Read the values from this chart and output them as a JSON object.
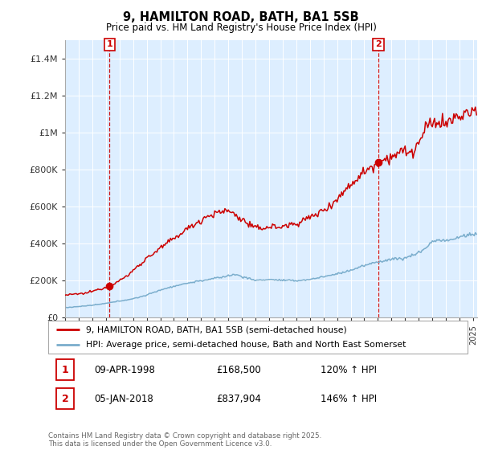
{
  "title": "9, HAMILTON ROAD, BATH, BA1 5SB",
  "subtitle": "Price paid vs. HM Land Registry's House Price Index (HPI)",
  "legend_line1": "9, HAMILTON ROAD, BATH, BA1 5SB (semi-detached house)",
  "legend_line2": "HPI: Average price, semi-detached house, Bath and North East Somerset",
  "annotation1_label": "1",
  "annotation1_date": "09-APR-1998",
  "annotation1_price": "£168,500",
  "annotation1_hpi": "120% ↑ HPI",
  "annotation2_label": "2",
  "annotation2_date": "05-JAN-2018",
  "annotation2_price": "£837,904",
  "annotation2_hpi": "146% ↑ HPI",
  "footer": "Contains HM Land Registry data © Crown copyright and database right 2025.\nThis data is licensed under the Open Government Licence v3.0.",
  "red_color": "#cc0000",
  "blue_color": "#7aadcc",
  "bg_color": "#ddeeff",
  "ylim_max": 1500000,
  "yticks": [
    0,
    200000,
    400000,
    600000,
    800000,
    1000000,
    1200000,
    1400000
  ],
  "ytick_labels": [
    "£0",
    "£200K",
    "£400K",
    "£600K",
    "£800K",
    "£1M",
    "£1.2M",
    "£1.4M"
  ],
  "sale1_x": 1998.27,
  "sale1_y": 168500,
  "sale2_x": 2018.03,
  "sale2_y": 837904,
  "xlim_min": 1995,
  "xlim_max": 2025.3
}
